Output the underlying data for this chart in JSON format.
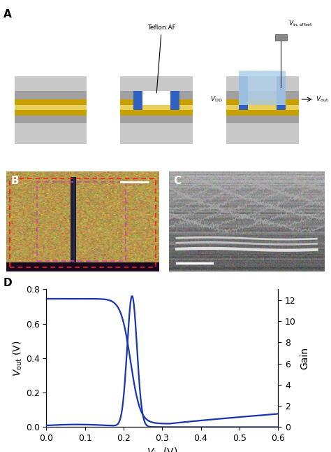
{
  "panel_label_fontsize": 11,
  "panel_label_color": "#000000",
  "line_color": "#1a35b0",
  "line_width": 1.6,
  "xlabel": "$V_{\\mathrm{in}}$ (V)",
  "ylabel_left": "$V_{\\mathrm{out}}$ (V)",
  "ylabel_right": "Gain",
  "xlim": [
    0.0,
    0.6
  ],
  "ylim_left": [
    0.0,
    0.8
  ],
  "ylim_right": [
    0.0,
    13.0
  ],
  "yticks_left": [
    0.0,
    0.2,
    0.4,
    0.6,
    0.8
  ],
  "yticks_right": [
    0,
    2,
    4,
    6,
    8,
    10,
    12
  ],
  "xticks": [
    0.0,
    0.1,
    0.2,
    0.3,
    0.4,
    0.5,
    0.6
  ],
  "background_color": "#ffffff",
  "fig_width": 4.74,
  "fig_height": 6.46,
  "layer_colors": {
    "light_gray_top": "#c8c8c8",
    "mid_gray": "#a0a0a0",
    "gold_dark": "#c8a000",
    "gold_light": "#e8d060",
    "blue_well": "#3060c0",
    "light_blue_liquid": "#b0d0e8",
    "bg_white": "#ffffff"
  }
}
